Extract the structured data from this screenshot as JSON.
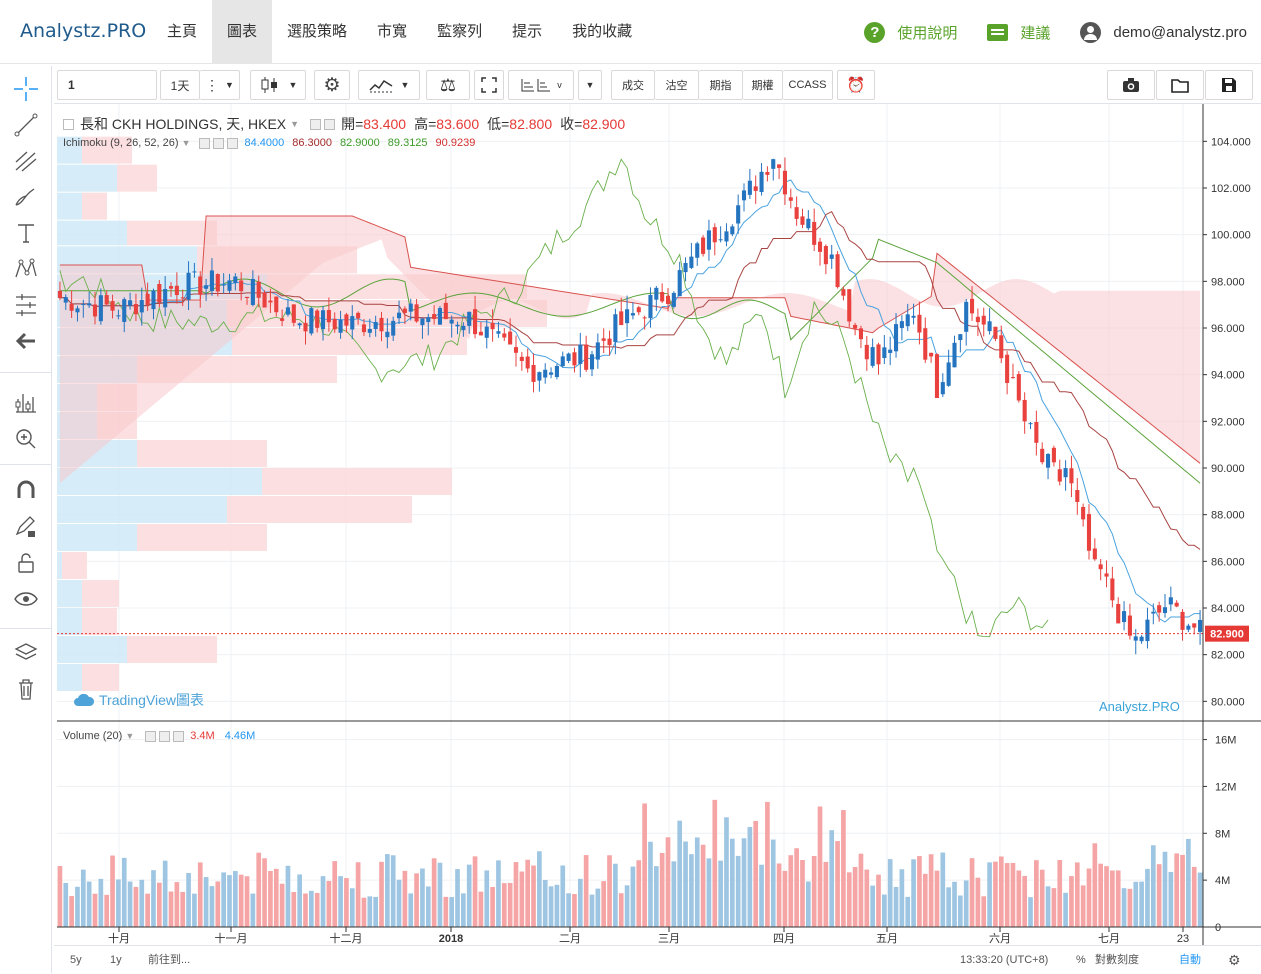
{
  "app": {
    "logo": "Analystz.PRO"
  },
  "nav": {
    "items": [
      "主頁",
      "圖表",
      "選股策略",
      "市寬",
      "監察列",
      "提示",
      "我的收藏"
    ],
    "active_index": 1,
    "help_label": "使用說明",
    "suggest_label": "建議",
    "user_label": "demo@analystz.pro"
  },
  "toolbar": {
    "symbol_value": "1",
    "interval_label": "1天",
    "buttons": [
      "成交",
      "沽空",
      "期指",
      "期權",
      "CCASS"
    ]
  },
  "legend": {
    "title": "長和 CKH HOLDINGS, 天, HKEX",
    "open_label": "開=",
    "open_value": "83.400",
    "high_label": "高=",
    "high_value": "83.600",
    "low_label": "低=",
    "low_value": "82.800",
    "close_label": "收=",
    "close_value": "82.900"
  },
  "ichimoku": {
    "label": "Ichimoku (9, 26, 52, 26)",
    "values": [
      "84.4000",
      "86.3000",
      "82.9000",
      "89.3125",
      "90.9239"
    ],
    "colors": [
      "#2196f3",
      "#a52a2a",
      "#3c9c28",
      "#3c9c28",
      "#d32f2f"
    ]
  },
  "volume_legend": {
    "label": "Volume (20)",
    "values": [
      "3.4M",
      "4.46M"
    ],
    "colors": [
      "#e53935",
      "#2196f3"
    ]
  },
  "watermarks": {
    "tradingview": "TradingView圖表",
    "brand": "Analystz.PRO"
  },
  "chart_data": {
    "type": "candlestick",
    "price_axis": {
      "ticks": [
        "104.000",
        "102.000",
        "100.000",
        "98.000",
        "96.000",
        "94.000",
        "92.000",
        "90.000",
        "88.000",
        "86.000",
        "84.000",
        "82.000",
        "80.000"
      ],
      "range": [
        79.2,
        105.6
      ]
    },
    "last_price_label": "82.900",
    "volume_axis": {
      "ticks": [
        "16M",
        "12M",
        "8M",
        "4M",
        "0"
      ],
      "range": [
        0,
        17.5
      ]
    },
    "time_axis": [
      "十月",
      "十一月",
      "十二月",
      "2018",
      "二月",
      "三月",
      "四月",
      "五月",
      "六月",
      "七月",
      "23"
    ],
    "colors": {
      "up": "#2474c0",
      "down": "#e8413e",
      "vol_up": "#9ec6e2",
      "vol_down": "#f5a5a5"
    }
  },
  "bottom": {
    "ranges": [
      "5y",
      "1y"
    ],
    "goto_label": "前往到...",
    "clock": "13:33:20 (UTC+8)",
    "percent_label": "%",
    "log_label": "對數刻度",
    "auto_label": "自動"
  }
}
